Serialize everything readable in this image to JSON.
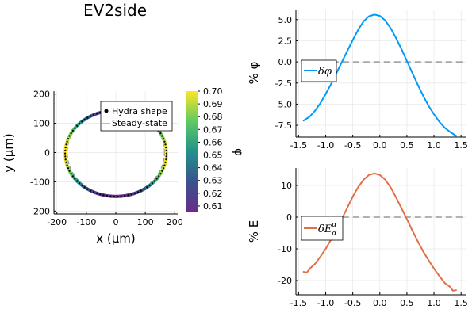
{
  "chart_data": [
    {
      "type": "scatter",
      "title": "EV2side",
      "xlabel": "x (μm)",
      "ylabel": "y (μm)",
      "xlim": [
        -210,
        210
      ],
      "ylim": [
        -210,
        210
      ],
      "xticks": [
        -200,
        -100,
        0,
        100,
        200
      ],
      "yticks": [
        -200,
        -100,
        0,
        100,
        200
      ],
      "grid": true,
      "legend_position": "top-right",
      "series": [
        {
          "name": "Hydra shape",
          "style": "points colored by φ",
          "shape": {
            "center": [
              0,
              -3
            ],
            "radius_x": 172,
            "radius_y": 147
          }
        },
        {
          "name": "Steady-state",
          "style": "line",
          "shape": {
            "center": [
              0,
              0
            ],
            "radius_x": 165,
            "radius_y": 148
          }
        }
      ],
      "colorbar": {
        "label": "φ",
        "range": [
          0.605,
          0.7
        ],
        "ticks": [
          "0.70",
          "0.69",
          "0.68",
          "0.67",
          "0.66",
          "0.65",
          "0.64",
          "0.63",
          "0.62",
          "0.61"
        ]
      }
    },
    {
      "type": "line",
      "ylabel": "% φ",
      "xlim": [
        -1.55,
        1.6
      ],
      "ylim": [
        -8.9,
        6.2
      ],
      "xticks": [
        "-1.5",
        "-1.0",
        "-0.5",
        "0.0",
        "0.5",
        "1.0",
        "1.5"
      ],
      "yticks": [
        "5.0",
        "2.5",
        "0.0",
        "-2.5",
        "-5.0",
        "-7.5"
      ],
      "ytick_values": [
        5.0,
        2.5,
        0.0,
        -2.5,
        -5.0,
        -7.5
      ],
      "grid": true,
      "reference_line": 0,
      "legend_position": "left",
      "series": [
        {
          "name": "δφ",
          "color": "#009af9",
          "x": [
            -1.42,
            -1.3,
            -1.2,
            -1.1,
            -1.0,
            -0.9,
            -0.8,
            -0.7,
            -0.6,
            -0.5,
            -0.4,
            -0.3,
            -0.2,
            -0.1,
            0.0,
            0.1,
            0.2,
            0.3,
            0.4,
            0.5,
            0.6,
            0.7,
            0.8,
            0.9,
            1.0,
            1.1,
            1.2,
            1.3,
            1.42
          ],
          "values": [
            -7.0,
            -6.5,
            -5.8,
            -4.9,
            -3.8,
            -2.6,
            -1.3,
            0.0,
            1.3,
            2.6,
            3.8,
            4.8,
            5.4,
            5.6,
            5.45,
            4.9,
            4.0,
            2.8,
            1.5,
            0.1,
            -1.3,
            -2.7,
            -4.0,
            -5.2,
            -6.2,
            -7.1,
            -7.8,
            -8.3,
            -8.8
          ]
        }
      ]
    },
    {
      "type": "line",
      "ylabel": "% E",
      "xlim": [
        -1.55,
        1.6
      ],
      "ylim": [
        -24.5,
        15.5
      ],
      "xticks": [
        "-1.5",
        "-1.0",
        "-0.5",
        "0.0",
        "0.5",
        "1.0",
        "1.5"
      ],
      "yticks": [
        "10",
        "0",
        "-10",
        "-20"
      ],
      "ytick_values": [
        10,
        0,
        -10,
        -20
      ],
      "grid": true,
      "reference_line": 0,
      "legend_position": "left",
      "series": [
        {
          "name": "δEαα",
          "color": "#e26f46",
          "x": [
            -1.42,
            -1.35,
            -1.28,
            -1.2,
            -1.1,
            -1.0,
            -0.9,
            -0.8,
            -0.7,
            -0.6,
            -0.5,
            -0.4,
            -0.3,
            -0.2,
            -0.1,
            0.0,
            0.1,
            0.2,
            0.3,
            0.4,
            0.5,
            0.6,
            0.7,
            0.8,
            0.9,
            1.0,
            1.1,
            1.2,
            1.3,
            1.35,
            1.42
          ],
          "values": [
            -17.2,
            -17.5,
            -16.0,
            -14.8,
            -12.5,
            -10.0,
            -7.0,
            -4.0,
            -0.5,
            3.0,
            6.5,
            9.5,
            11.8,
            13.3,
            13.8,
            13.3,
            11.8,
            9.4,
            6.2,
            2.8,
            -0.6,
            -4.2,
            -7.6,
            -10.8,
            -13.6,
            -16.2,
            -18.6,
            -20.8,
            -22.0,
            -23.2,
            -23.0
          ]
        }
      ]
    }
  ]
}
